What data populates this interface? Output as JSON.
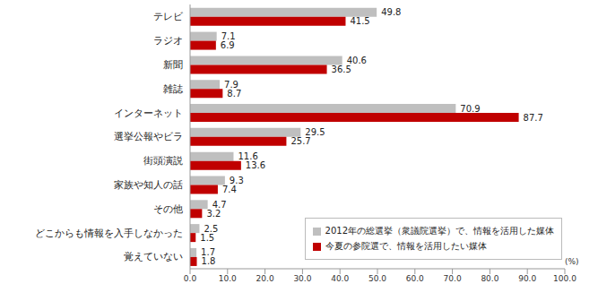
{
  "chart_data": {
    "type": "bar",
    "orientation": "horizontal",
    "categories": [
      "テレビ",
      "ラジオ",
      "新聞",
      "雑誌",
      "インターネット",
      "選挙公報やビラ",
      "街頭演説",
      "家族や知人の話",
      "その他",
      "どこからも情報を入手しなかった",
      "覚えていない"
    ],
    "series": [
      {
        "name": "2012年の総選挙（衆議院選挙）で、情報を活用した媒体",
        "color": "#bfbfbf",
        "values": [
          49.8,
          7.1,
          40.6,
          7.9,
          70.9,
          29.5,
          11.6,
          9.3,
          4.7,
          2.5,
          1.7
        ]
      },
      {
        "name": "今夏の参院選で、情報を活用したい媒体",
        "color": "#c00000",
        "values": [
          41.5,
          6.9,
          36.5,
          8.7,
          87.7,
          25.7,
          13.6,
          7.4,
          3.2,
          1.5,
          1.8
        ]
      }
    ],
    "x_label": "(%)",
    "xlim": [
      0,
      100
    ],
    "xticks": [
      {
        "value": 0,
        "label": "0.0"
      },
      {
        "value": 10,
        "label": "10.0"
      },
      {
        "value": 20,
        "label": "20.0"
      },
      {
        "value": 30,
        "label": "30.0"
      },
      {
        "value": 40,
        "label": "40.0"
      },
      {
        "value": 50,
        "label": "50.0"
      },
      {
        "value": 60,
        "label": "60.0"
      },
      {
        "value": 70,
        "label": "70.0"
      },
      {
        "value": 80,
        "label": "80.0"
      },
      {
        "value": 90,
        "label": "90.0"
      },
      {
        "value": 100,
        "label": "100.0"
      }
    ],
    "data_labels": true,
    "grid": false,
    "legend": "lower right"
  }
}
